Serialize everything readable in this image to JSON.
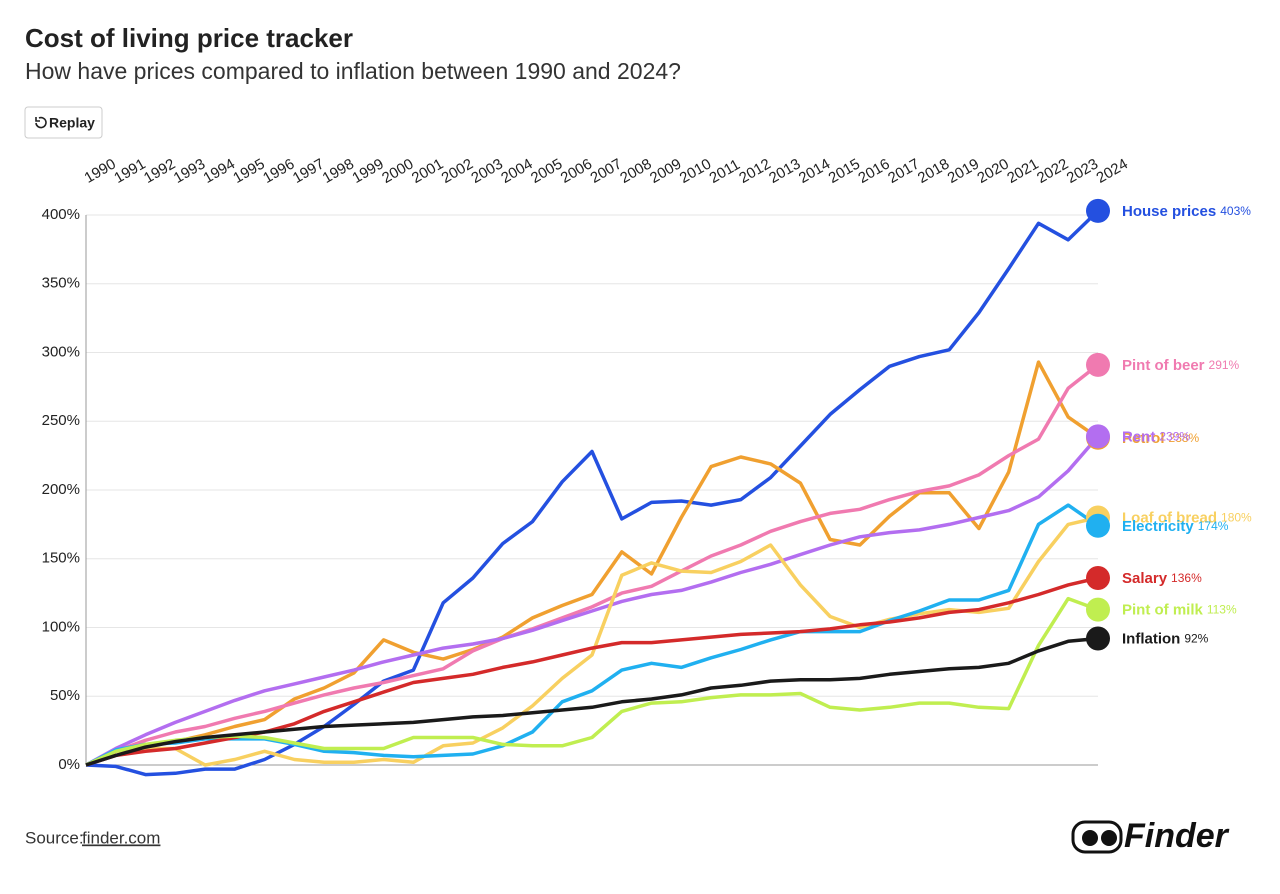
{
  "chart_data": {
    "type": "line",
    "title": "Cost of living price tracker",
    "subtitle": "How have prices compared to inflation between 1990 and 2024?",
    "x": [
      1990,
      1991,
      1992,
      1993,
      1994,
      1995,
      1996,
      1997,
      1998,
      1999,
      2000,
      2001,
      2002,
      2003,
      2004,
      2005,
      2006,
      2007,
      2008,
      2009,
      2010,
      2011,
      2012,
      2013,
      2014,
      2015,
      2016,
      2017,
      2018,
      2019,
      2020,
      2021,
      2022,
      2023,
      2024
    ],
    "xlim": [
      1990,
      2024
    ],
    "ylim": [
      0,
      400
    ],
    "yticks": [
      {
        "value": 0,
        "label": "0%"
      },
      {
        "value": 50,
        "label": "50%"
      },
      {
        "value": 100,
        "label": "100%"
      },
      {
        "value": 150,
        "label": "150%"
      },
      {
        "value": 200,
        "label": "200%"
      },
      {
        "value": 250,
        "label": "250%"
      },
      {
        "value": 300,
        "label": "300%"
      },
      {
        "value": 350,
        "label": "350%"
      },
      {
        "value": 400,
        "label": "400%"
      }
    ],
    "grid": true,
    "series": [
      {
        "name": "House prices",
        "color": "#2450e0",
        "values": [
          0,
          -1,
          -7,
          -6,
          -3,
          -3,
          4,
          15,
          28,
          44,
          61,
          69,
          118,
          136,
          161,
          177,
          206,
          228,
          179,
          191,
          192,
          189,
          193,
          209,
          232,
          255,
          273,
          290,
          297,
          302,
          329,
          361,
          394,
          382,
          403
        ],
        "value_labels": [
          null,
          null,
          null,
          null,
          null,
          null,
          null,
          null,
          null,
          null,
          null,
          null,
          null,
          null,
          null,
          null,
          null,
          null,
          null,
          null,
          null,
          null,
          null,
          null,
          null,
          null,
          null,
          null,
          null,
          null,
          null,
          null,
          null,
          null,
          "403%"
        ]
      },
      {
        "name": "Petrol",
        "color": "#f0a030",
        "values": [
          0,
          10,
          14,
          17,
          22,
          28,
          33,
          48,
          56,
          67,
          91,
          82,
          77,
          84,
          93,
          107,
          116,
          124,
          155,
          139,
          180,
          217,
          224,
          219,
          205,
          164,
          160,
          181,
          198,
          198,
          172,
          213,
          293,
          253,
          238
        ],
        "value_labels": [
          null,
          null,
          null,
          null,
          null,
          null,
          null,
          null,
          null,
          null,
          null,
          null,
          null,
          null,
          null,
          null,
          null,
          null,
          null,
          null,
          null,
          null,
          null,
          null,
          null,
          null,
          null,
          null,
          null,
          null,
          null,
          null,
          null,
          null,
          "238%"
        ]
      },
      {
        "name": "Pint of beer",
        "color": "#f07ab0",
        "values": [
          0,
          10,
          18,
          24,
          28,
          34,
          39,
          45,
          51,
          56,
          60,
          65,
          70,
          83,
          92,
          99,
          107,
          115,
          125,
          130,
          141,
          152,
          160,
          170,
          177,
          183,
          186,
          193,
          199,
          203,
          211,
          225,
          237,
          274,
          291
        ],
        "value_labels": [
          null,
          null,
          null,
          null,
          null,
          null,
          null,
          null,
          null,
          null,
          null,
          null,
          null,
          null,
          null,
          null,
          null,
          null,
          null,
          null,
          null,
          null,
          null,
          null,
          null,
          null,
          null,
          null,
          null,
          null,
          null,
          null,
          null,
          null,
          "291%"
        ]
      },
      {
        "name": "Rent",
        "color": "#b36ef0",
        "values": [
          0,
          12,
          22,
          31,
          39,
          47,
          54,
          59,
          64,
          69,
          75,
          80,
          85,
          88,
          92,
          98,
          105,
          112,
          119,
          124,
          127,
          133,
          140,
          146,
          153,
          160,
          166,
          169,
          171,
          175,
          180,
          185,
          195,
          214,
          239
        ],
        "value_labels": [
          null,
          null,
          null,
          null,
          null,
          null,
          null,
          null,
          null,
          null,
          null,
          null,
          null,
          null,
          null,
          null,
          null,
          null,
          null,
          null,
          null,
          null,
          null,
          null,
          null,
          null,
          null,
          null,
          null,
          null,
          null,
          null,
          null,
          null,
          "239%"
        ]
      },
      {
        "name": "Loaf of bread",
        "color": "#f8d060",
        "values": [
          0,
          10,
          12,
          12,
          0,
          4,
          10,
          4,
          2,
          2,
          4,
          2,
          14,
          16,
          27,
          43,
          63,
          80,
          138,
          147,
          141,
          140,
          148,
          160,
          131,
          108,
          100,
          106,
          110,
          113,
          111,
          114,
          148,
          175,
          180
        ],
        "value_labels": [
          null,
          null,
          null,
          null,
          null,
          null,
          null,
          null,
          null,
          null,
          null,
          null,
          null,
          null,
          null,
          null,
          null,
          null,
          null,
          null,
          null,
          null,
          null,
          null,
          null,
          null,
          null,
          null,
          null,
          null,
          null,
          null,
          null,
          null,
          "180%"
        ]
      },
      {
        "name": "Electricity",
        "color": "#20b0f0",
        "values": [
          0,
          11,
          15,
          16,
          19,
          19,
          19,
          15,
          10,
          9,
          7,
          6,
          7,
          8,
          14,
          24,
          46,
          54,
          69,
          74,
          71,
          78,
          84,
          91,
          97,
          97,
          97,
          105,
          112,
          120,
          120,
          127,
          175,
          189,
          174
        ],
        "value_labels": [
          null,
          null,
          null,
          null,
          null,
          null,
          null,
          null,
          null,
          null,
          null,
          null,
          null,
          null,
          null,
          null,
          null,
          null,
          null,
          null,
          null,
          null,
          null,
          null,
          null,
          null,
          null,
          null,
          null,
          null,
          null,
          null,
          null,
          null,
          "174%"
        ]
      },
      {
        "name": "Salary",
        "color": "#d42a2a",
        "values": [
          0,
          7,
          10,
          12,
          16,
          20,
          24,
          30,
          39,
          46,
          53,
          60,
          63,
          66,
          71,
          75,
          80,
          85,
          89,
          89,
          91,
          93,
          95,
          96,
          97,
          99,
          102,
          104,
          107,
          111,
          113,
          118,
          124,
          131,
          136
        ],
        "value_labels": [
          null,
          null,
          null,
          null,
          null,
          null,
          null,
          null,
          null,
          null,
          null,
          null,
          null,
          null,
          null,
          null,
          null,
          null,
          null,
          null,
          null,
          null,
          null,
          null,
          null,
          null,
          null,
          null,
          null,
          null,
          null,
          null,
          null,
          null,
          "136%"
        ]
      },
      {
        "name": "Pint of milk",
        "color": "#c0ee50",
        "values": [
          0,
          10,
          15,
          18,
          20,
          21,
          20,
          16,
          12,
          12,
          12,
          20,
          20,
          20,
          15,
          14,
          14,
          20,
          39,
          45,
          46,
          49,
          51,
          51,
          52,
          42,
          40,
          42,
          45,
          45,
          42,
          41,
          87,
          121,
          113
        ],
        "value_labels": [
          null,
          null,
          null,
          null,
          null,
          null,
          null,
          null,
          null,
          null,
          null,
          null,
          null,
          null,
          null,
          null,
          null,
          null,
          null,
          null,
          null,
          null,
          null,
          null,
          null,
          null,
          null,
          null,
          null,
          null,
          null,
          null,
          null,
          null,
          "113%"
        ]
      },
      {
        "name": "Inflation",
        "color": "#1a1a1a",
        "values": [
          0,
          7,
          13,
          17,
          20,
          22,
          24,
          26,
          28,
          29,
          30,
          31,
          33,
          35,
          36,
          38,
          40,
          42,
          46,
          48,
          51,
          56,
          58,
          61,
          62,
          62,
          63,
          66,
          68,
          70,
          71,
          74,
          83,
          90,
          92
        ],
        "value_labels": [
          null,
          null,
          null,
          null,
          null,
          null,
          null,
          null,
          null,
          null,
          null,
          null,
          null,
          null,
          null,
          null,
          null,
          null,
          null,
          null,
          null,
          null,
          null,
          null,
          null,
          null,
          null,
          null,
          null,
          null,
          null,
          null,
          null,
          null,
          "92%"
        ]
      }
    ]
  },
  "replay_button": "Replay",
  "source_label": "Source:",
  "source_link": "finder.com",
  "logo_text": "Finder"
}
